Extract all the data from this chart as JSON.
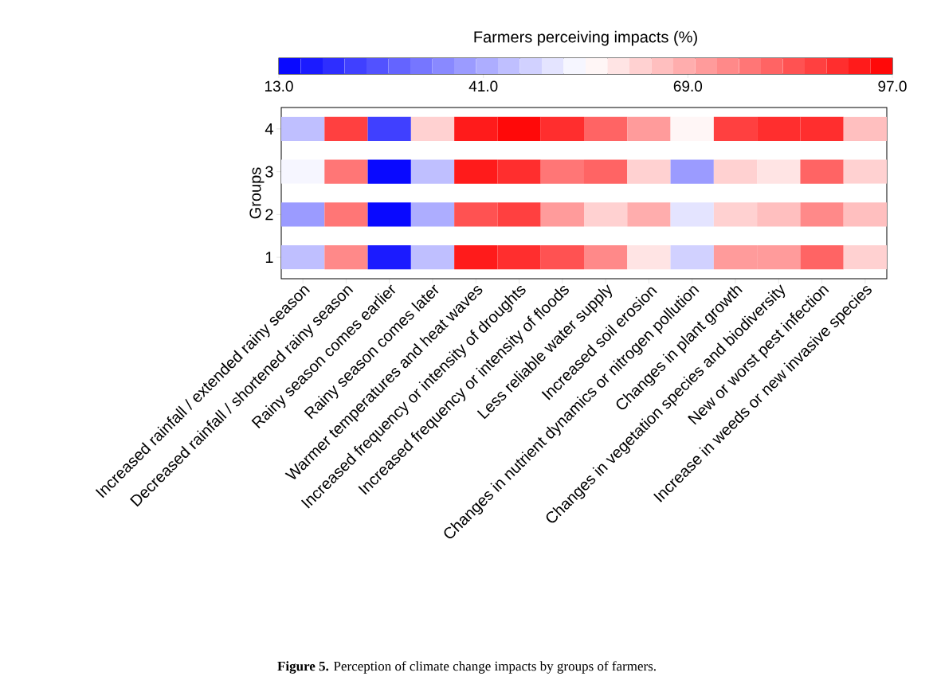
{
  "chart_data": {
    "type": "heatmap",
    "clabel": "Farmers perceiving impacts (%)",
    "ylabel": "Groups",
    "categories": [
      "Increased rainfall / extended rainy season",
      "Decreased rainfall / shortened rainy season",
      "Rainy season comes earlier",
      "Rainy season comes later",
      "Warmer temperatures and heat waves",
      "Increased frequency or intensity of droughts",
      "Increased frequency or intensity of floods",
      "Less reliable water supply",
      "Increased soil erosion",
      "Changes in nutrient dynamics or nitrogen pollution",
      "Changes in plant growth",
      "Changes in vegetation species and biodiversity",
      "New or worst pest infection",
      "Increase in weeds or new invasive species"
    ],
    "y_categories": [
      "4",
      "3",
      "2",
      "1"
    ],
    "cells": [
      [
        44,
        85,
        23,
        62,
        92,
        96,
        89,
        80,
        71,
        56,
        86,
        89,
        89,
        65
      ],
      [
        53,
        77,
        14,
        44,
        91,
        89,
        77,
        80,
        62,
        38,
        62,
        59,
        80,
        62
      ],
      [
        38,
        77,
        14,
        41,
        83,
        86,
        71,
        62,
        68,
        50,
        62,
        65,
        74,
        65
      ],
      [
        44,
        74,
        17,
        44,
        91,
        89,
        83,
        74,
        59,
        47,
        71,
        71,
        80,
        62
      ]
    ],
    "clim": [
      13,
      97
    ],
    "cticks": [
      {
        "value": 13,
        "label": "13.0"
      },
      {
        "value": 41,
        "label": "41.0"
      },
      {
        "value": 69,
        "label": "69.0"
      },
      {
        "value": 97,
        "label": "97.0"
      }
    ],
    "annotations": [
      "**Figure 5.** Perception of climate change impacts by groups of farmers."
    ]
  }
}
